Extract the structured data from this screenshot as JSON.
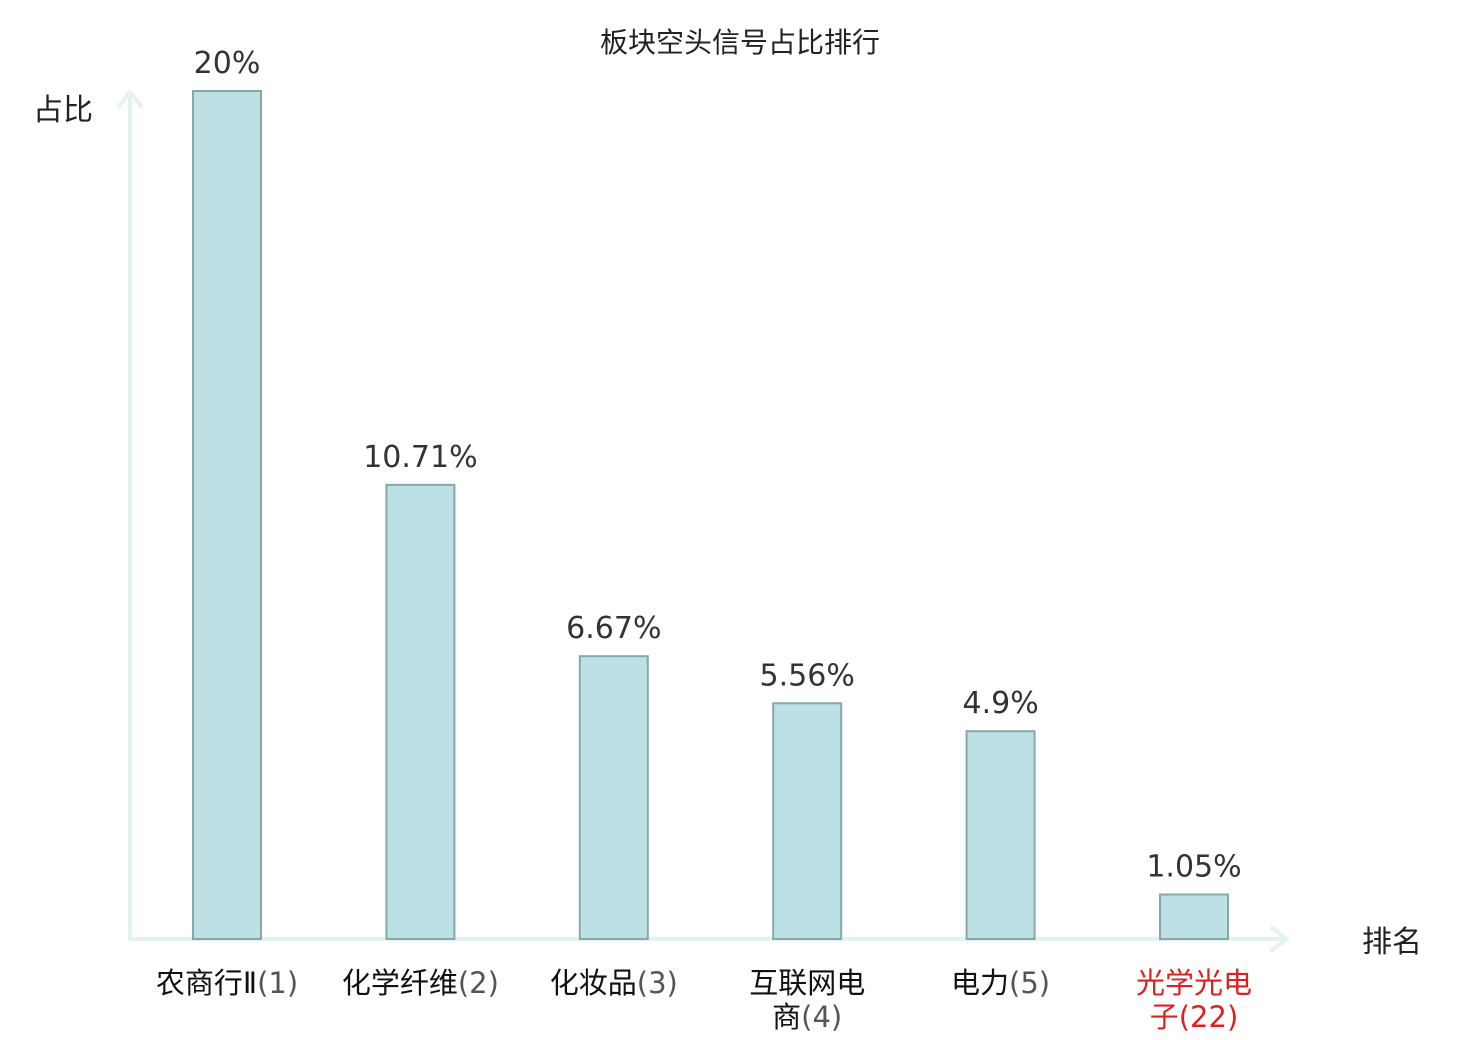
{
  "chart_data": {
    "type": "bar",
    "title": "板块空头信号占比排行",
    "xlabel": "排名",
    "ylabel": "占比",
    "unit": "%",
    "categories": [
      {
        "name": "农商行Ⅱ",
        "rank": "(1)",
        "lines": [
          {
            "name": "农商行Ⅱ",
            "rank": "(1)"
          }
        ],
        "highlight": false
      },
      {
        "name": "化学纤维",
        "rank": "(2)",
        "lines": [
          {
            "name": "化学纤维",
            "rank": "(2)"
          }
        ],
        "highlight": false
      },
      {
        "name": "化妆品",
        "rank": "(3)",
        "lines": [
          {
            "name": "化妆品",
            "rank": "(3)"
          }
        ],
        "highlight": false
      },
      {
        "name": "互联网电商",
        "rank": "(4)",
        "lines": [
          {
            "name": "互联网电",
            "rank": ""
          },
          {
            "name": "商",
            "rank": "(4)"
          }
        ],
        "highlight": false
      },
      {
        "name": "电力",
        "rank": "(5)",
        "lines": [
          {
            "name": "电力",
            "rank": "(5)"
          }
        ],
        "highlight": false
      },
      {
        "name": "光学光电子",
        "rank": "(22)",
        "lines": [
          {
            "name": "光学光电",
            "rank": ""
          },
          {
            "name": "子",
            "rank": "(22)"
          }
        ],
        "highlight": true
      }
    ],
    "values": [
      20,
      10.71,
      6.67,
      5.56,
      4.9,
      1.05
    ],
    "data_labels": [
      "20%",
      "10.71%",
      "6.67%",
      "5.56%",
      "4.9%",
      "1.05%"
    ],
    "ylim": [
      0,
      20
    ],
    "grid": false,
    "colors": {
      "bar_fill": "#bce0e3",
      "bar_stroke": "#86a8ab",
      "axis": "#e3f3f1",
      "highlight": "#e02020"
    }
  }
}
